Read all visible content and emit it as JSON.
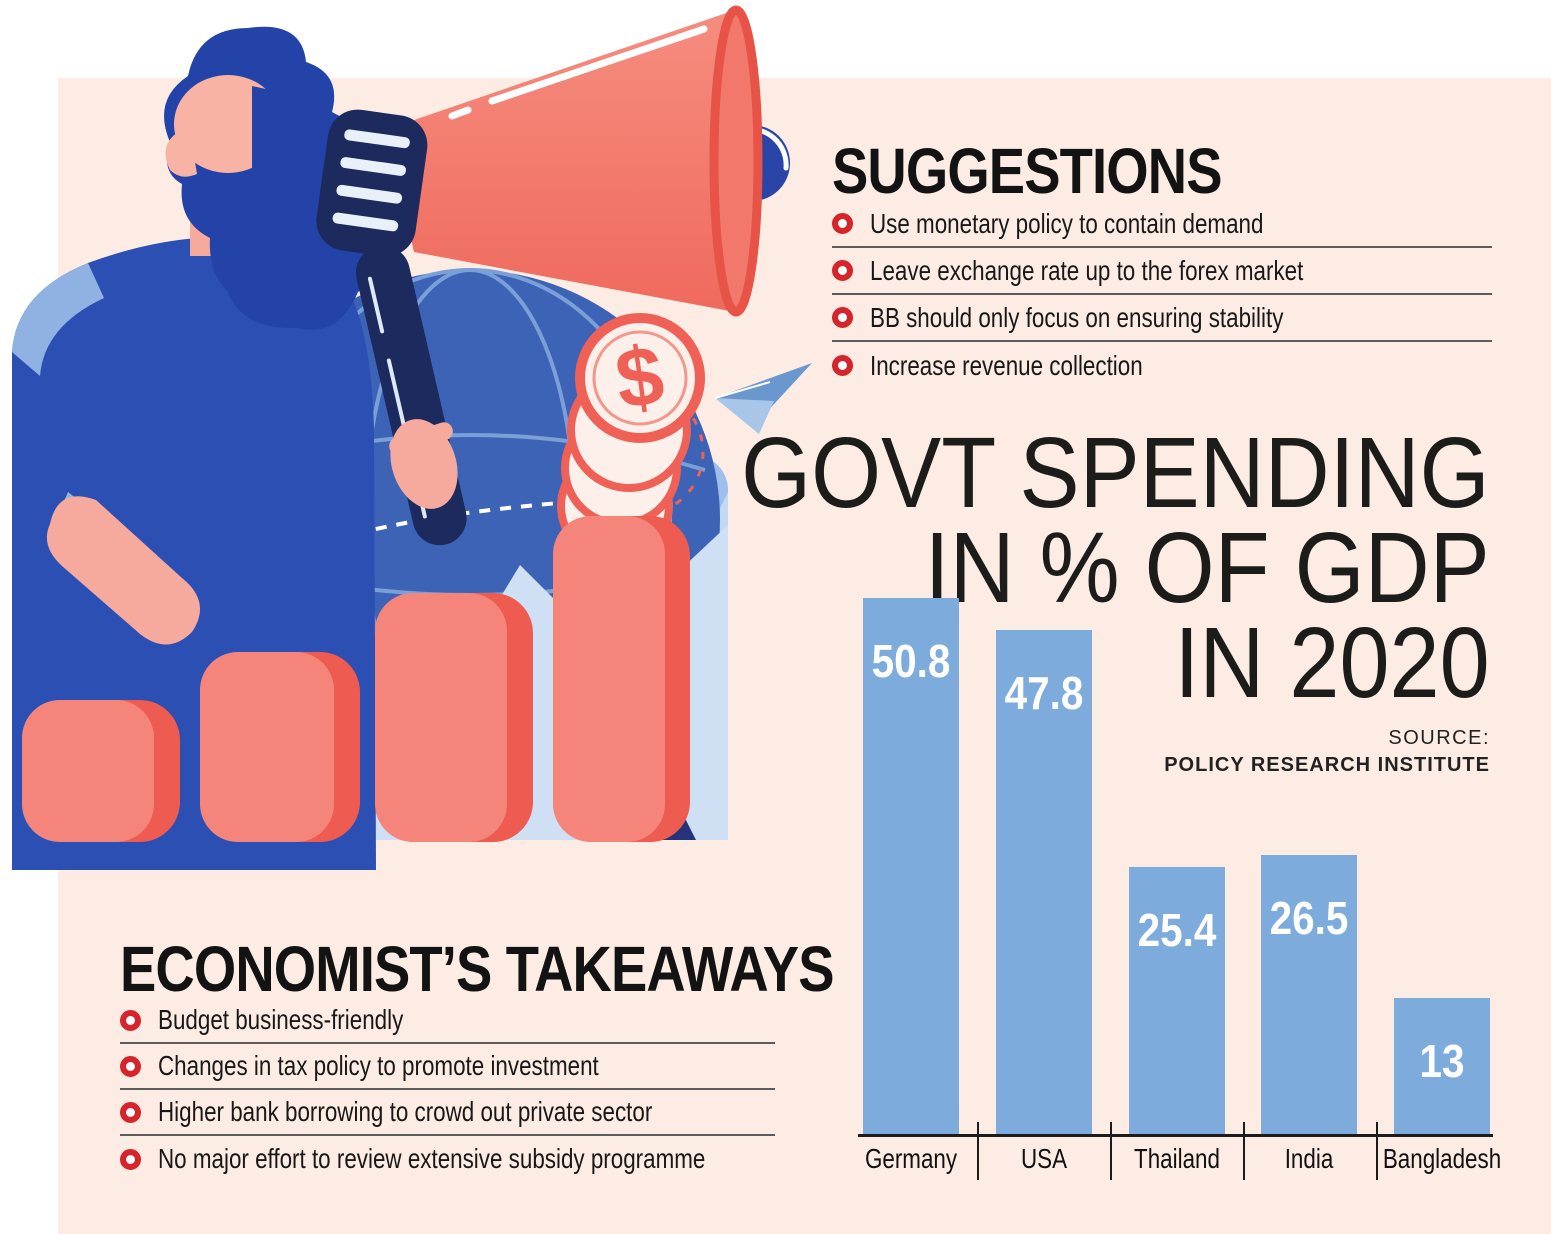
{
  "page": {
    "background": "#ffffff",
    "panel_color": "#fcece4"
  },
  "suggestions": {
    "heading": "SUGGESTIONS",
    "items": [
      "Use monetary policy to contain demand",
      "Leave exchange rate up to the forex market",
      "BB should only focus on ensuring stability",
      "Increase revenue collection"
    ],
    "bullet_color": "#d7232a",
    "divider_color": "#5c5c5c"
  },
  "takeaways": {
    "heading": "ECONOMIST’S TAKEAWAYS",
    "items": [
      "Budget business-friendly",
      "Changes in tax policy to promote investment",
      "Higher bank borrowing to crowd out private sector",
      "No major effort to review extensive subsidy programme"
    ],
    "bullet_color": "#d7232a",
    "divider_color": "#5c5c5c"
  },
  "chart_data": {
    "type": "bar",
    "title": "GOVT SPENDING IN % OF GDP IN 2020",
    "title_lines": [
      "GOVT SPENDING",
      "IN % OF GDP",
      "IN 2020"
    ],
    "source_label": "SOURCE:",
    "source_value": "POLICY RESEARCH INSTITUTE",
    "categories": [
      "Germany",
      "USA",
      "Thailand",
      "India",
      "Bangladesh"
    ],
    "values": [
      50.8,
      47.8,
      25.4,
      26.5,
      13
    ],
    "unit": "% of GDP",
    "ylim": [
      0,
      55
    ],
    "grid": false,
    "legend": false,
    "bar_color": "#7dabdc",
    "value_label_color": "#ffffff",
    "axis_color": "#1c1c1c"
  },
  "illustration": {
    "description": "man speaking through megaphone with dollar coins, globe, paper plane and rising bars",
    "dollar_sign": "$",
    "colors": {
      "salmon": "#f3796c",
      "salmon_dark": "#ee5a4e",
      "navy": "#1d2a5e",
      "royal_blue": "#2c4fb4",
      "skin": "#f6a99d",
      "globe_blue": "#3c63b6",
      "card_blue": "#9dbfe9"
    }
  }
}
